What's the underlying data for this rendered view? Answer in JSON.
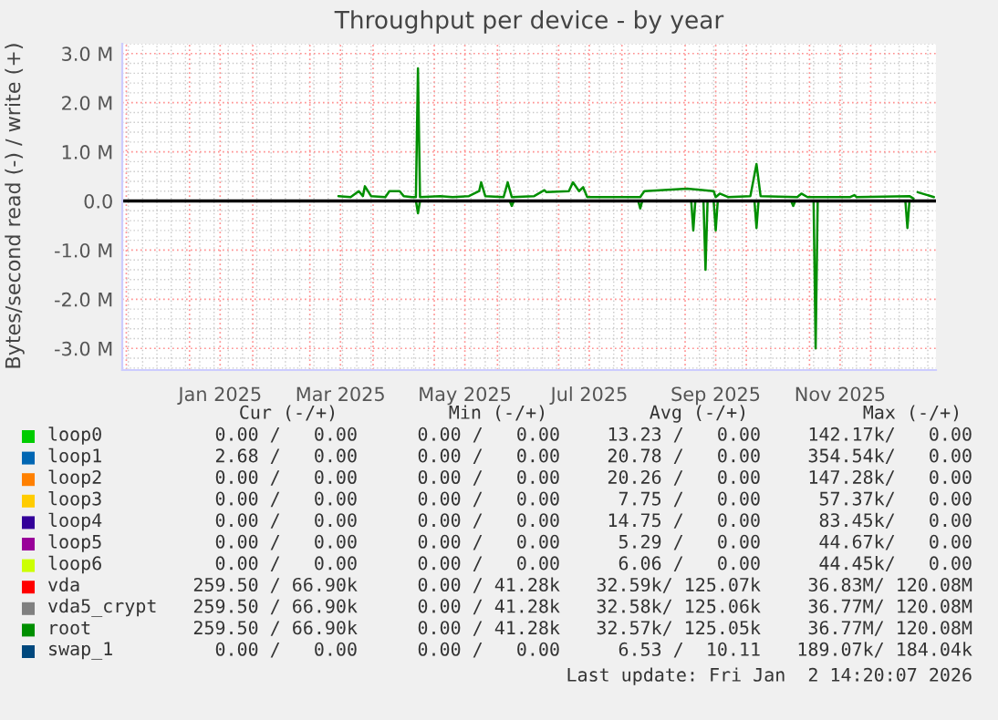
{
  "chart_data": {
    "type": "line",
    "title": "Throughput per device - by year",
    "ylabel": "Bytes/second read (-) / write (+)",
    "xlim": [
      "2024-11-29",
      "2026-01-02"
    ],
    "ylim": [
      -3440000,
      3200000
    ],
    "xticks": [
      {
        "value": "2024-12-01",
        "label": null
      },
      {
        "value": "2025-01-01",
        "label": null
      },
      {
        "value": "2025-01-16",
        "label": "Jan 2025"
      },
      {
        "value": "2025-02-01",
        "label": null
      },
      {
        "value": "2025-03-01",
        "label": null
      },
      {
        "value": "2025-03-16",
        "label": "Mar 2025"
      },
      {
        "value": "2025-04-01",
        "label": null
      },
      {
        "value": "2025-05-01",
        "label": null
      },
      {
        "value": "2025-05-16",
        "label": "May 2025"
      },
      {
        "value": "2025-06-01",
        "label": null
      },
      {
        "value": "2025-07-01",
        "label": null
      },
      {
        "value": "2025-07-16",
        "label": "Jul 2025"
      },
      {
        "value": "2025-08-01",
        "label": null
      },
      {
        "value": "2025-09-01",
        "label": null
      },
      {
        "value": "2025-09-16",
        "label": "Sep 2025"
      },
      {
        "value": "2025-10-01",
        "label": null
      },
      {
        "value": "2025-11-01",
        "label": null
      },
      {
        "value": "2025-11-16",
        "label": "Nov 2025"
      },
      {
        "value": "2025-12-01",
        "label": null
      }
    ],
    "yticks": [
      {
        "value": -3000000,
        "label": "-3.0 M"
      },
      {
        "value": -2000000,
        "label": "-2.0 M"
      },
      {
        "value": -1000000,
        "label": "-1.0 M"
      },
      {
        "value": 0,
        "label": "0.0"
      },
      {
        "value": 1000000,
        "label": "1.0 M"
      },
      {
        "value": 2000000,
        "label": "2.0 M"
      },
      {
        "value": 3000000,
        "label": "3.0 M"
      }
    ],
    "grid": true,
    "legend": "bottom",
    "ref_lines": [
      {
        "axis": "y",
        "value": 0,
        "color": "#000000"
      }
    ],
    "series": [
      {
        "name": "loop0",
        "color": "#00cc00"
      },
      {
        "name": "loop1",
        "color": "#0066b3"
      },
      {
        "name": "loop2",
        "color": "#ff8000"
      },
      {
        "name": "loop3",
        "color": "#ffcc00"
      },
      {
        "name": "loop4",
        "color": "#330099"
      },
      {
        "name": "loop5",
        "color": "#990099"
      },
      {
        "name": "loop6",
        "color": "#ccff00"
      },
      {
        "name": "vda",
        "color": "#ff0000"
      },
      {
        "name": "vda5_crypt",
        "color": "#808080"
      },
      {
        "name": "root",
        "color": "#008f00",
        "x": [
          "2025-03-15",
          "2025-03-21",
          "2025-03-25",
          "2025-03-27",
          "2025-03-28",
          "2025-03-31",
          "2025-04-07",
          "2025-04-09",
          "2025-04-14",
          "2025-04-16",
          "2025-04-20",
          "2025-04-22",
          "2025-04-23",
          "2025-04-24",
          "2025-05-04",
          "2025-05-10",
          "2025-05-18",
          "2025-05-23",
          "2025-05-24",
          "2025-05-26",
          "2025-06-04",
          "2025-06-06",
          "2025-06-08",
          "2025-06-19",
          "2025-06-24",
          "2025-06-25",
          "2025-07-06",
          "2025-07-08",
          "2025-07-11",
          "2025-07-13",
          "2025-07-15",
          "2025-08-10",
          "2025-08-12",
          "2025-09-02",
          "2025-09-15",
          "2025-09-16",
          "2025-09-18",
          "2025-09-22",
          "2025-10-03",
          "2025-10-06",
          "2025-10-08",
          "2025-10-26",
          "2025-10-28",
          "2025-10-31",
          "2025-11-21",
          "2025-11-23",
          "2025-11-24",
          "2025-12-20",
          "2025-12-22",
          "2025-12-23",
          "2025-12-24",
          "2026-01-01"
        ],
        "values": [
          100000,
          80000,
          200000,
          100000,
          300000,
          100000,
          80000,
          200000,
          200000,
          100000,
          80000,
          80000,
          2700000,
          80000,
          100000,
          80000,
          100000,
          200000,
          380000,
          100000,
          80000,
          380000,
          80000,
          100000,
          220000,
          180000,
          200000,
          380000,
          200000,
          280000,
          80000,
          80000,
          200000,
          250000,
          200000,
          80000,
          150000,
          80000,
          100000,
          750000,
          100000,
          80000,
          150000,
          80000,
          80000,
          120000,
          80000,
          100000,
          50000,
          null,
          180000,
          80000
        ]
      },
      {
        "color": "#008f00",
        "x": [
          "2025-03-15",
          "2025-04-22",
          "2025-04-23",
          "2025-04-24",
          "2025-06-07",
          "2025-06-08",
          "2025-06-09",
          "2025-08-09",
          "2025-08-10",
          "2025-08-11",
          "2025-09-04",
          "2025-09-05",
          "2025-09-06",
          "2025-09-10",
          "2025-09-11",
          "2025-09-12",
          "2025-09-15",
          "2025-09-16",
          "2025-09-17",
          "2025-10-05",
          "2025-10-06",
          "2025-10-07",
          "2025-10-23",
          "2025-10-24",
          "2025-10-25",
          "2025-11-03",
          "2025-11-04",
          "2025-11-05",
          "2025-12-18",
          "2025-12-19",
          "2025-12-20",
          "2026-01-01"
        ],
        "values": [
          0,
          0,
          -250000,
          0,
          0,
          -100000,
          0,
          0,
          -150000,
          0,
          0,
          -600000,
          0,
          0,
          -1400000,
          0,
          0,
          -600000,
          0,
          0,
          -550000,
          0,
          0,
          -100000,
          0,
          0,
          -3000000,
          0,
          0,
          -550000,
          0,
          0
        ]
      },
      {
        "name": "swap_1",
        "color": "#00487d"
      }
    ],
    "annotations": [
      "Cur (-/+)",
      "Min (-/+)",
      "Avg (-/+)",
      "Max (-/+)",
      "0.00 /   0.00",
      "0.00 /   0.00",
      "13.23 /   0.00",
      "142.17k/   0.00",
      "2.68 /   0.00",
      "0.00 /   0.00",
      "20.78 /   0.00",
      "354.54k/   0.00",
      "0.00 /   0.00",
      "0.00 /   0.00",
      "20.26 /   0.00",
      "147.28k/   0.00",
      "0.00 /   0.00",
      "0.00 /   0.00",
      "7.75 /   0.00",
      "57.37k/   0.00",
      "0.00 /   0.00",
      "0.00 /   0.00",
      "14.75 /   0.00",
      "83.45k/   0.00",
      "0.00 /   0.00",
      "0.00 /   0.00",
      "5.29 /   0.00",
      "44.67k/   0.00",
      "0.00 /   0.00",
      "0.00 /   0.00",
      "6.06 /   0.00",
      "44.45k/   0.00",
      "259.50 / 66.90k",
      "0.00 / 41.28k",
      "32.59k/ 125.07k",
      "36.83M/ 120.08M",
      "259.50 / 66.90k",
      "0.00 / 41.28k",
      "32.58k/ 125.06k",
      "36.77M/ 120.08M",
      "259.50 / 66.90k",
      "0.00 / 41.28k",
      "32.57k/ 125.05k",
      "36.77M/ 120.08M",
      "0.00 /   0.00",
      "0.00 /   0.00",
      "6.53 /  10.11",
      "189.07k/ 184.04k",
      "Last update: Fri Jan  2 14:20:07 2026"
    ]
  }
}
